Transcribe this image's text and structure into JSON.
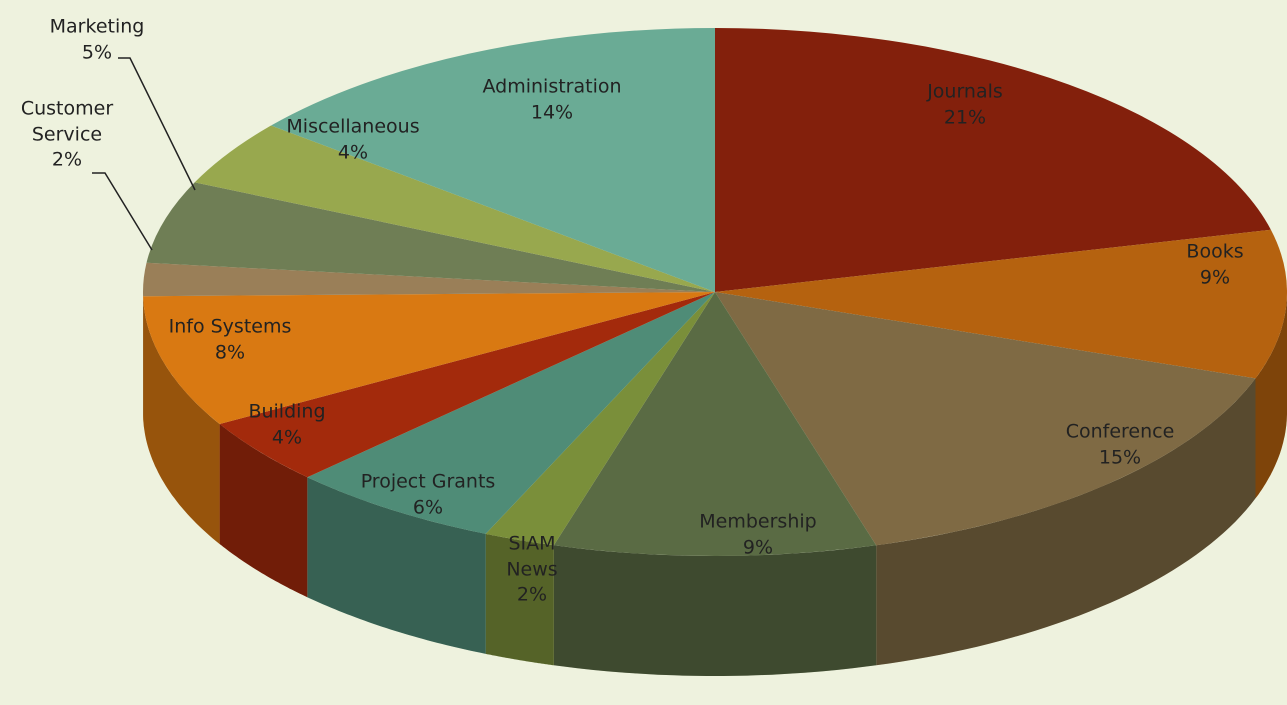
{
  "chart_data": {
    "type": "pie",
    "categories": [
      "Journals",
      "Books",
      "Conference",
      "Membership",
      "SIAM News",
      "Project Grants",
      "Building",
      "Info Systems",
      "Customer Service",
      "Marketing",
      "Miscellaneous",
      "Administration"
    ],
    "values": [
      21,
      9,
      15,
      9,
      2,
      6,
      4,
      8,
      2,
      5,
      4,
      14
    ],
    "value_labels": [
      "21%",
      "9%",
      "15%",
      "9%",
      "2%",
      "6%",
      "4%",
      "8%",
      "2%",
      "5%",
      "4%",
      "14%"
    ],
    "colors": [
      "#83200c",
      "#b5620f",
      "#7f6a44",
      "#5a6b44",
      "#7a8f3a",
      "#4f8c77",
      "#a32a0c",
      "#d97912",
      "#9a7f58",
      "#6f7e55",
      "#98a84e",
      "#6aab95"
    ]
  }
}
